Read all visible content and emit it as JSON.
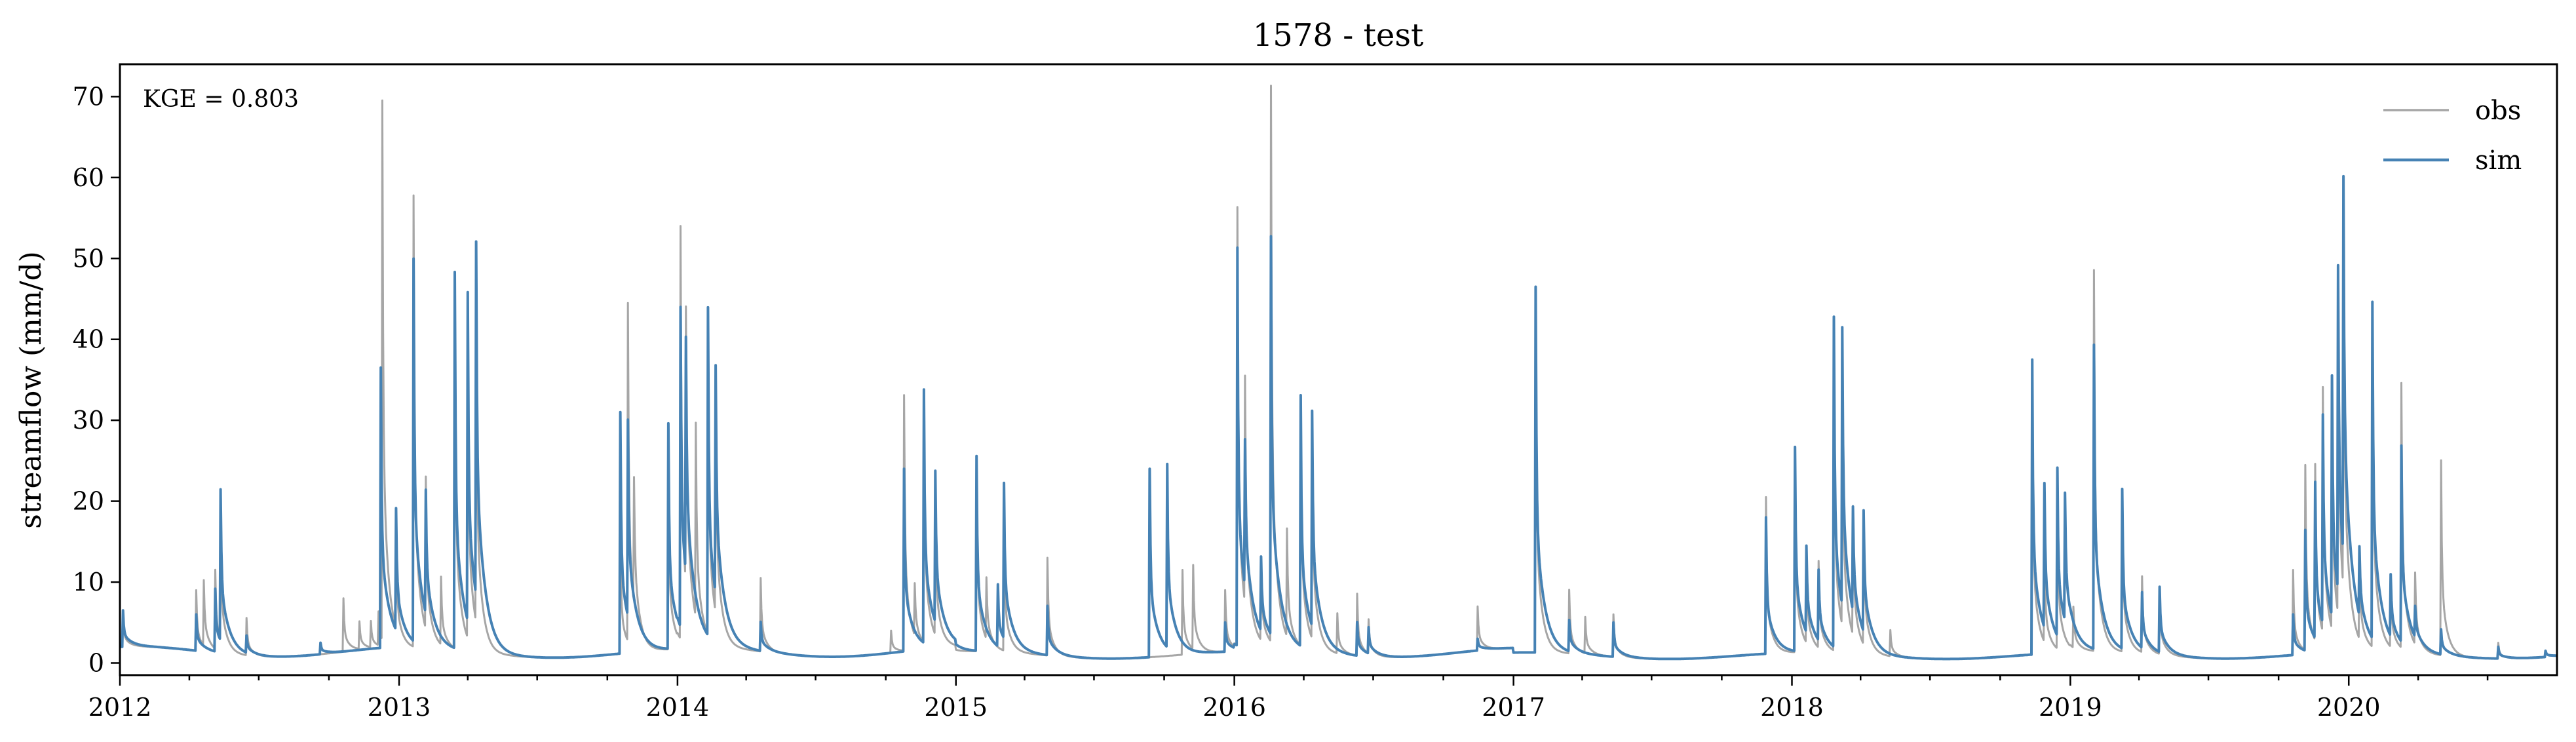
{
  "chart_data": {
    "type": "line",
    "title": "1578 - test",
    "xlabel": "",
    "ylabel": "streamflow (mm/d)",
    "annotation": "KGE = 0.803",
    "xlim": [
      "2012-01-01",
      "2020-09-30"
    ],
    "ylim": [
      -1.5,
      74
    ],
    "yticks": [
      0,
      10,
      20,
      30,
      40,
      50,
      60,
      70
    ],
    "xticks": [
      "2012",
      "2013",
      "2014",
      "2015",
      "2016",
      "2017",
      "2018",
      "2019",
      "2020"
    ],
    "grid": false,
    "legend_position": "top-right",
    "baseflow": {
      "2012": 1.4,
      "2013": 1.2,
      "2014": 1.4,
      "2015": 1.0,
      "2016": 1.3,
      "2017": 0.9,
      "2018": 0.9,
      "2019": 1.0,
      "2020": 1.0
    },
    "series": [
      {
        "name": "obs",
        "color": "#a6a6a6",
        "peaks": [
          [
            "2012-01-05",
            6.0
          ],
          [
            "2012-04-10",
            9.0
          ],
          [
            "2012-04-20",
            9.5
          ],
          [
            "2012-05-05",
            11.0
          ],
          [
            "2012-05-12",
            15.0
          ],
          [
            "2012-06-15",
            5.5
          ],
          [
            "2012-10-20",
            8.0
          ],
          [
            "2012-11-10",
            5.0
          ],
          [
            "2012-11-25",
            5.0
          ],
          [
            "2012-12-05",
            6.0
          ],
          [
            "2012-12-10",
            68.5
          ],
          [
            "2012-12-28",
            12.0
          ],
          [
            "2013-01-20",
            57.5
          ],
          [
            "2013-02-05",
            20.5
          ],
          [
            "2013-02-25",
            10.0
          ],
          [
            "2013-03-15",
            45.0
          ],
          [
            "2013-04-01",
            40.0
          ],
          [
            "2013-04-12",
            40.0
          ],
          [
            "2013-10-18",
            16.0
          ],
          [
            "2013-10-28",
            43.0
          ],
          [
            "2013-11-05",
            17.0
          ],
          [
            "2013-12-20",
            24.0
          ],
          [
            "2014-01-05",
            53.0
          ],
          [
            "2014-01-12",
            36.0
          ],
          [
            "2014-01-25",
            26.0
          ],
          [
            "2014-02-10",
            41.0
          ],
          [
            "2014-02-20",
            30.0
          ],
          [
            "2014-04-20",
            10.5
          ],
          [
            "2014-10-08",
            4.0
          ],
          [
            "2014-10-25",
            33.0
          ],
          [
            "2014-11-08",
            8.0
          ],
          [
            "2014-11-20",
            32.0
          ],
          [
            "2014-12-05",
            18.0
          ],
          [
            "2015-01-28",
            25.0
          ],
          [
            "2015-02-10",
            9.0
          ],
          [
            "2015-03-05",
            17.0
          ],
          [
            "2015-05-01",
            13.0
          ],
          [
            "2015-10-25",
            11.5
          ],
          [
            "2015-11-08",
            11.5
          ],
          [
            "2015-12-20",
            9.0
          ],
          [
            "2016-01-05",
            56.0
          ],
          [
            "2016-01-15",
            30.0
          ],
          [
            "2016-02-05",
            12.0
          ],
          [
            "2016-02-18",
            70.5
          ],
          [
            "2016-03-10",
            15.0
          ],
          [
            "2016-03-28",
            32.0
          ],
          [
            "2016-04-12",
            28.0
          ],
          [
            "2016-05-15",
            6.0
          ],
          [
            "2016-06-10",
            8.5
          ],
          [
            "2016-06-25",
            5.0
          ],
          [
            "2016-11-15",
            7.0
          ],
          [
            "2017-01-30",
            44.0
          ],
          [
            "2017-03-15",
            9.0
          ],
          [
            "2017-04-05",
            5.5
          ],
          [
            "2017-05-12",
            6.0
          ],
          [
            "2017-11-28",
            20.5
          ],
          [
            "2018-01-05",
            25.0
          ],
          [
            "2018-01-20",
            12.0
          ],
          [
            "2018-02-05",
            12.0
          ],
          [
            "2018-02-25",
            40.0
          ],
          [
            "2018-03-08",
            33.0
          ],
          [
            "2018-03-22",
            17.0
          ],
          [
            "2018-04-05",
            17.0
          ],
          [
            "2018-05-10",
            4.0
          ],
          [
            "2018-11-12",
            34.0
          ],
          [
            "2018-11-28",
            12.0
          ],
          [
            "2018-12-15",
            20.0
          ],
          [
            "2019-01-05",
            6.5
          ],
          [
            "2019-02-01",
            48.5
          ],
          [
            "2019-03-10",
            20.0
          ],
          [
            "2019-04-05",
            10.5
          ],
          [
            "2019-04-28",
            9.0
          ],
          [
            "2019-10-20",
            11.5
          ],
          [
            "2019-11-05",
            24.0
          ],
          [
            "2019-11-18",
            23.0
          ],
          [
            "2019-11-28",
            31.5
          ],
          [
            "2019-12-10",
            30.0
          ],
          [
            "2019-12-18",
            42.0
          ],
          [
            "2019-12-25",
            48.0
          ],
          [
            "2020-01-15",
            12.0
          ],
          [
            "2020-02-01",
            42.0
          ],
          [
            "2020-02-25",
            10.0
          ],
          [
            "2020-03-10",
            34.0
          ],
          [
            "2020-03-28",
            10.0
          ],
          [
            "2020-05-01",
            25.0
          ],
          [
            "2020-07-15",
            2.5
          ],
          [
            "2020-09-15",
            1.5
          ]
        ]
      },
      {
        "name": "sim",
        "color": "#4682b4",
        "peaks": [
          [
            "2012-01-05",
            6.5
          ],
          [
            "2012-04-10",
            6.0
          ],
          [
            "2012-05-05",
            9.0
          ],
          [
            "2012-05-12",
            19.8
          ],
          [
            "2012-06-15",
            3.0
          ],
          [
            "2012-09-20",
            2.5
          ],
          [
            "2012-12-08",
            36.5
          ],
          [
            "2012-12-28",
            17.0
          ],
          [
            "2013-01-20",
            49.0
          ],
          [
            "2013-02-05",
            17.0
          ],
          [
            "2013-03-15",
            48.0
          ],
          [
            "2013-04-01",
            42.0
          ],
          [
            "2013-04-12",
            45.0
          ],
          [
            "2013-10-18",
            31.0
          ],
          [
            "2013-10-28",
            25.5
          ],
          [
            "2013-12-20",
            29.5
          ],
          [
            "2014-01-05",
            41.5
          ],
          [
            "2014-01-12",
            31.0
          ],
          [
            "2014-02-10",
            42.5
          ],
          [
            "2014-02-20",
            30.0
          ],
          [
            "2014-04-20",
            5.0
          ],
          [
            "2014-10-25",
            24.0
          ],
          [
            "2014-11-20",
            33.0
          ],
          [
            "2014-12-05",
            20.5
          ],
          [
            "2015-01-28",
            25.5
          ],
          [
            "2015-02-25",
            9.0
          ],
          [
            "2015-03-05",
            20.5
          ],
          [
            "2015-05-01",
            7.0
          ],
          [
            "2015-09-12",
            24.0
          ],
          [
            "2015-10-05",
            23.5
          ],
          [
            "2015-12-20",
            5.0
          ],
          [
            "2016-01-05",
            51.0
          ],
          [
            "2016-01-15",
            20.0
          ],
          [
            "2016-02-05",
            11.0
          ],
          [
            "2016-02-18",
            51.0
          ],
          [
            "2016-03-28",
            32.5
          ],
          [
            "2016-04-12",
            28.0
          ],
          [
            "2016-06-10",
            5.0
          ],
          [
            "2016-06-25",
            4.0
          ],
          [
            "2016-11-15",
            3.0
          ],
          [
            "2017-01-30",
            46.5
          ],
          [
            "2017-03-15",
            5.0
          ],
          [
            "2017-05-12",
            5.0
          ],
          [
            "2017-11-28",
            18.0
          ],
          [
            "2018-01-05",
            26.5
          ],
          [
            "2018-01-20",
            12.0
          ],
          [
            "2018-02-05",
            10.0
          ],
          [
            "2018-02-25",
            42.0
          ],
          [
            "2018-03-08",
            35.5
          ],
          [
            "2018-03-22",
            14.0
          ],
          [
            "2018-04-05",
            16.0
          ],
          [
            "2018-11-12",
            37.5
          ],
          [
            "2018-11-28",
            19.0
          ],
          [
            "2018-12-15",
            22.0
          ],
          [
            "2018-12-25",
            17.0
          ],
          [
            "2019-02-01",
            39.0
          ],
          [
            "2019-03-10",
            21.0
          ],
          [
            "2019-04-05",
            8.0
          ],
          [
            "2019-04-28",
            9.0
          ],
          [
            "2019-10-20",
            6.0
          ],
          [
            "2019-11-05",
            16.0
          ],
          [
            "2019-11-18",
            20.5
          ],
          [
            "2019-11-28",
            27.0
          ],
          [
            "2019-12-10",
            31.0
          ],
          [
            "2019-12-18",
            41.5
          ],
          [
            "2019-12-25",
            48.0
          ],
          [
            "2020-01-15",
            10.0
          ],
          [
            "2020-02-01",
            43.0
          ],
          [
            "2020-02-25",
            9.0
          ],
          [
            "2020-03-10",
            25.5
          ],
          [
            "2020-03-28",
            5.0
          ],
          [
            "2020-05-01",
            4.0
          ],
          [
            "2020-07-15",
            2.0
          ],
          [
            "2020-09-15",
            1.5
          ]
        ]
      }
    ]
  }
}
